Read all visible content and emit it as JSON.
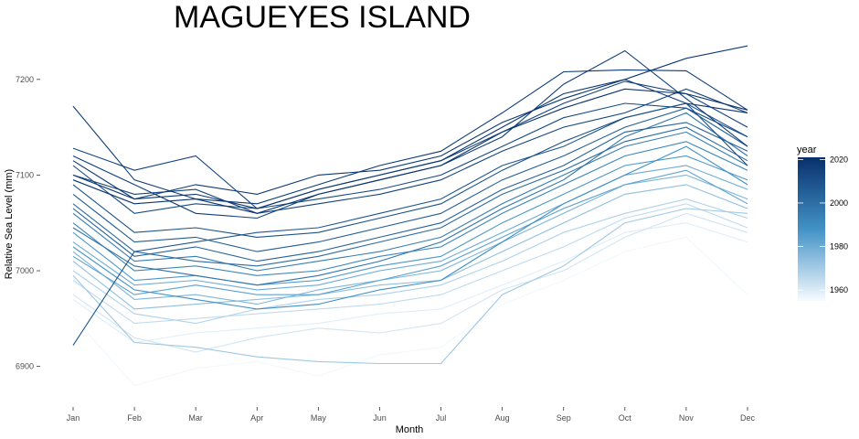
{
  "chart_data": {
    "type": "line",
    "title": "MAGUEYES ISLAND",
    "xlabel": "Month",
    "ylabel": "Relative Sea Level (mm)",
    "categories": [
      "Jan",
      "Feb",
      "Mar",
      "Apr",
      "May",
      "Jun",
      "Jul",
      "Aug",
      "Sep",
      "Oct",
      "Nov",
      "Dec"
    ],
    "y_ticks": [
      6900,
      7000,
      7100,
      7200
    ],
    "ylim": [
      6870,
      7240
    ],
    "grid": false,
    "legend": {
      "title": "year",
      "type": "colorbar",
      "placement": "right",
      "ticks": [
        1960,
        1980,
        2000,
        2020
      ],
      "range": [
        1955,
        2021
      ],
      "color_low": "#f7fbff",
      "color_mid": "#4292c6",
      "color_high": "#08306b"
    },
    "series": [
      {
        "year": 1956,
        "values": [
          6952,
          6880,
          6898,
          6905,
          6890,
          6912,
          6920,
          6965,
          6990,
          7020,
          7035,
          6975
        ]
      },
      {
        "year": 1959,
        "values": [
          6970,
          6925,
          6935,
          6940,
          6945,
          6955,
          6960,
          6985,
          7010,
          7040,
          7050,
          7030
        ]
      },
      {
        "year": 1962,
        "values": [
          6975,
          6930,
          6915,
          6930,
          6940,
          6935,
          6945,
          6980,
          7000,
          7035,
          7060,
          7040
        ]
      },
      {
        "year": 1965,
        "values": [
          6990,
          6945,
          6950,
          6955,
          6960,
          6965,
          6975,
          7000,
          7025,
          7055,
          7070,
          7045
        ]
      },
      {
        "year": 1968,
        "values": [
          7000,
          6955,
          6945,
          6960,
          6970,
          6975,
          6985,
          7010,
          7040,
          7060,
          7075,
          7055
        ]
      },
      {
        "year": 1971,
        "values": [
          6995,
          6925,
          6920,
          6910,
          6905,
          6903,
          6903,
          6975,
          7005,
          7050,
          7065,
          7060
        ]
      },
      {
        "year": 1974,
        "values": [
          7010,
          6960,
          6965,
          6970,
          6975,
          6985,
          6990,
          7020,
          7050,
          7080,
          7090,
          7065
        ]
      },
      {
        "year": 1977,
        "values": [
          7020,
          6970,
          6975,
          6965,
          6980,
          6990,
          7000,
          7030,
          7060,
          7090,
          7100,
          7075
        ]
      },
      {
        "year": 1980,
        "values": [
          7030,
          6985,
          6990,
          6980,
          6985,
          7000,
          7010,
          7040,
          7070,
          7100,
          7110,
          7085
        ]
      },
      {
        "year": 1983,
        "values": [
          7015,
          6975,
          6985,
          6975,
          6975,
          6990,
          7005,
          7035,
          7065,
          7090,
          7105,
          7070
        ]
      },
      {
        "year": 1986,
        "values": [
          7040,
          6990,
          6995,
          6985,
          6990,
          7005,
          7015,
          7050,
          7080,
          7110,
          7120,
          7095
        ]
      },
      {
        "year": 1989,
        "values": [
          7025,
          6980,
          6970,
          6960,
          6965,
          6980,
          6990,
          7030,
          7070,
          7100,
          7130,
          7090
        ]
      },
      {
        "year": 1992,
        "values": [
          7050,
          7000,
          7005,
          6995,
          7000,
          7015,
          7025,
          7060,
          7090,
          7120,
          7135,
          7105
        ]
      },
      {
        "year": 1995,
        "values": [
          7060,
          7010,
          7015,
          7000,
          7010,
          7020,
          7035,
          7070,
          7100,
          7130,
          7145,
          7110
        ]
      },
      {
        "year": 1998,
        "values": [
          7045,
          7005,
          6995,
          6985,
          6995,
          7010,
          7030,
          7065,
          7095,
          7140,
          7165,
          7120
        ]
      },
      {
        "year": 2001,
        "values": [
          7070,
          7020,
          7010,
          7005,
          7015,
          7030,
          7045,
          7080,
          7105,
          7135,
          7150,
          7115
        ]
      },
      {
        "year": 2004,
        "values": [
          7065,
          7015,
          7025,
          7010,
          7020,
          7035,
          7050,
          7085,
          7110,
          7145,
          7155,
          7125
        ]
      },
      {
        "year": 2006,
        "values": [
          7080,
          7030,
          7035,
          7020,
          7030,
          7045,
          7060,
          7095,
          7120,
          7150,
          7170,
          7130
        ]
      },
      {
        "year": 2008,
        "values": [
          6922,
          7020,
          7030,
          7040,
          7045,
          7060,
          7075,
          7110,
          7130,
          7160,
          7175,
          7140
        ]
      },
      {
        "year": 2010,
        "values": [
          7090,
          7040,
          7045,
          7035,
          7040,
          7055,
          7070,
          7105,
          7135,
          7160,
          7175,
          7110
        ]
      },
      {
        "year": 2012,
        "values": [
          7110,
          7060,
          7070,
          7065,
          7075,
          7085,
          7100,
          7130,
          7160,
          7175,
          7170,
          7140
        ]
      },
      {
        "year": 2014,
        "values": [
          7100,
          7080,
          7085,
          7060,
          7070,
          7080,
          7095,
          7125,
          7150,
          7165,
          7190,
          7165
        ]
      },
      {
        "year": 2015,
        "values": [
          7128,
          7105,
          7120,
          7065,
          7085,
          7100,
          7115,
          7145,
          7175,
          7198,
          7185,
          7150
        ]
      },
      {
        "year": 2016,
        "values": [
          7120,
          7090,
          7060,
          7055,
          7080,
          7095,
          7110,
          7140,
          7195,
          7230,
          7180,
          7130
        ]
      },
      {
        "year": 2017,
        "values": [
          7172,
          7095,
          7075,
          7070,
          7090,
          7110,
          7125,
          7165,
          7208,
          7210,
          7209,
          7168
        ]
      },
      {
        "year": 2018,
        "values": [
          7115,
          7075,
          7090,
          7080,
          7100,
          7105,
          7120,
          7155,
          7180,
          7200,
          7222,
          7235
        ]
      },
      {
        "year": 2019,
        "values": [
          7100,
          7075,
          7080,
          7065,
          7085,
          7100,
          7115,
          7150,
          7185,
          7200,
          7175,
          7165
        ]
      },
      {
        "year": 2020,
        "values": [
          7095,
          7070,
          7075,
          7060,
          7080,
          7095,
          7110,
          7145,
          7170,
          7190,
          7185,
          7168
        ]
      }
    ]
  }
}
